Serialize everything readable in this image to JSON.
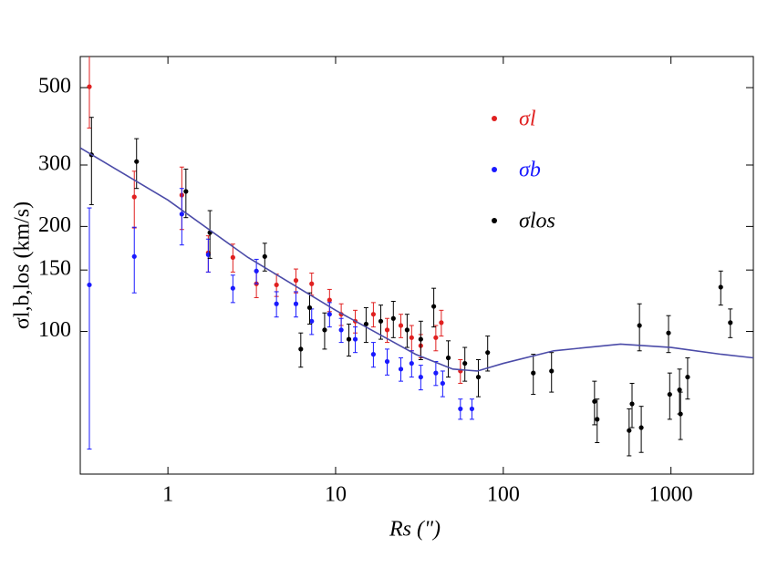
{
  "chart_data": {
    "type": "scatter",
    "log_x": true,
    "log_y": true,
    "x_label": "Rs (\")",
    "y_label": "σl,b,los (km/s)",
    "xlim": [
      0.3,
      3100
    ],
    "ylim": [
      39,
      614
    ],
    "xticks": [
      1,
      10,
      100,
      1000
    ],
    "yticks": [
      100,
      150,
      200,
      300,
      500
    ],
    "legend": "top-right",
    "series": [
      {
        "name": "σl",
        "color": "#e02020",
        "x": [
          0.34,
          0.63,
          1.21,
          1.74,
          2.44,
          3.37,
          4.44,
          5.8,
          7.2,
          9.2,
          10.8,
          13.1,
          16.8,
          20.3,
          24.5,
          28.4,
          32.2,
          39.6,
          42.7,
          55.5
        ],
        "values": [
          503,
          243,
          246,
          168,
          163,
          137,
          136,
          140,
          137,
          123,
          112,
          107,
          112,
          101,
          104,
          96,
          91,
          96,
          106,
          77
        ],
        "errors": [
          120,
          45,
          50,
          20,
          15,
          12,
          10,
          11,
          10,
          9,
          8,
          8,
          9,
          8,
          8,
          8,
          7,
          8,
          9,
          6
        ]
      },
      {
        "name": "σb",
        "color": "#1a1aff",
        "x": [
          0.34,
          0.63,
          1.21,
          1.74,
          2.44,
          3.37,
          4.44,
          5.8,
          7.2,
          9.2,
          10.8,
          13.1,
          16.8,
          20.3,
          24.5,
          28.4,
          32.2,
          39.6,
          43.5,
          55.5,
          65
        ],
        "values": [
          136,
          164,
          217,
          166,
          133,
          149,
          120,
          120,
          107,
          112,
          101,
          95,
          86,
          82,
          78,
          81,
          74,
          76,
          71,
          60,
          60
        ],
        "errors": [
          90,
          35,
          40,
          18,
          12,
          12,
          10,
          10,
          9,
          9,
          8,
          8,
          7,
          7,
          6,
          7,
          6,
          6,
          6,
          4,
          4
        ]
      },
      {
        "name": "σlos",
        "color": "#000000",
        "x": [
          0.35,
          0.65,
          1.28,
          1.78,
          3.78,
          6.2,
          7.0,
          8.6,
          12,
          15.2,
          18.6,
          22.1,
          26.7,
          32.2,
          38.5,
          47,
          59,
          71,
          80.7,
          151,
          194,
          350,
          363,
          563,
          586,
          665,
          649,
          967,
          983,
          1125,
          1140,
          1257,
          1981,
          2260
        ],
        "values": [
          321,
          307,
          252,
          192,
          164,
          89,
          117,
          101,
          95,
          105,
          107,
          109,
          101,
          95,
          118,
          84,
          81,
          74,
          87,
          76,
          77,
          63,
          56,
          52,
          62,
          53,
          104,
          99,
          66,
          68,
          58,
          74,
          134,
          106
        ],
        "errors": [
          90,
          50,
          40,
          30,
          15,
          10,
          12,
          12,
          10,
          12,
          12,
          13,
          11,
          12,
          15,
          10,
          9,
          9,
          10,
          10,
          10,
          9,
          8,
          8,
          9,
          8,
          16,
          12,
          10,
          10,
          9,
          10,
          15,
          10
        ]
      }
    ],
    "fit": {
      "color": "#4b4ba8",
      "x": [
        0.3,
        1,
        3,
        10,
        30,
        50,
        70,
        100,
        200,
        500,
        1000,
        2000,
        3100
      ],
      "values": [
        336,
        238,
        163,
        115,
        86,
        78,
        77,
        81,
        88,
        92,
        90,
        86,
        84
      ]
    }
  }
}
